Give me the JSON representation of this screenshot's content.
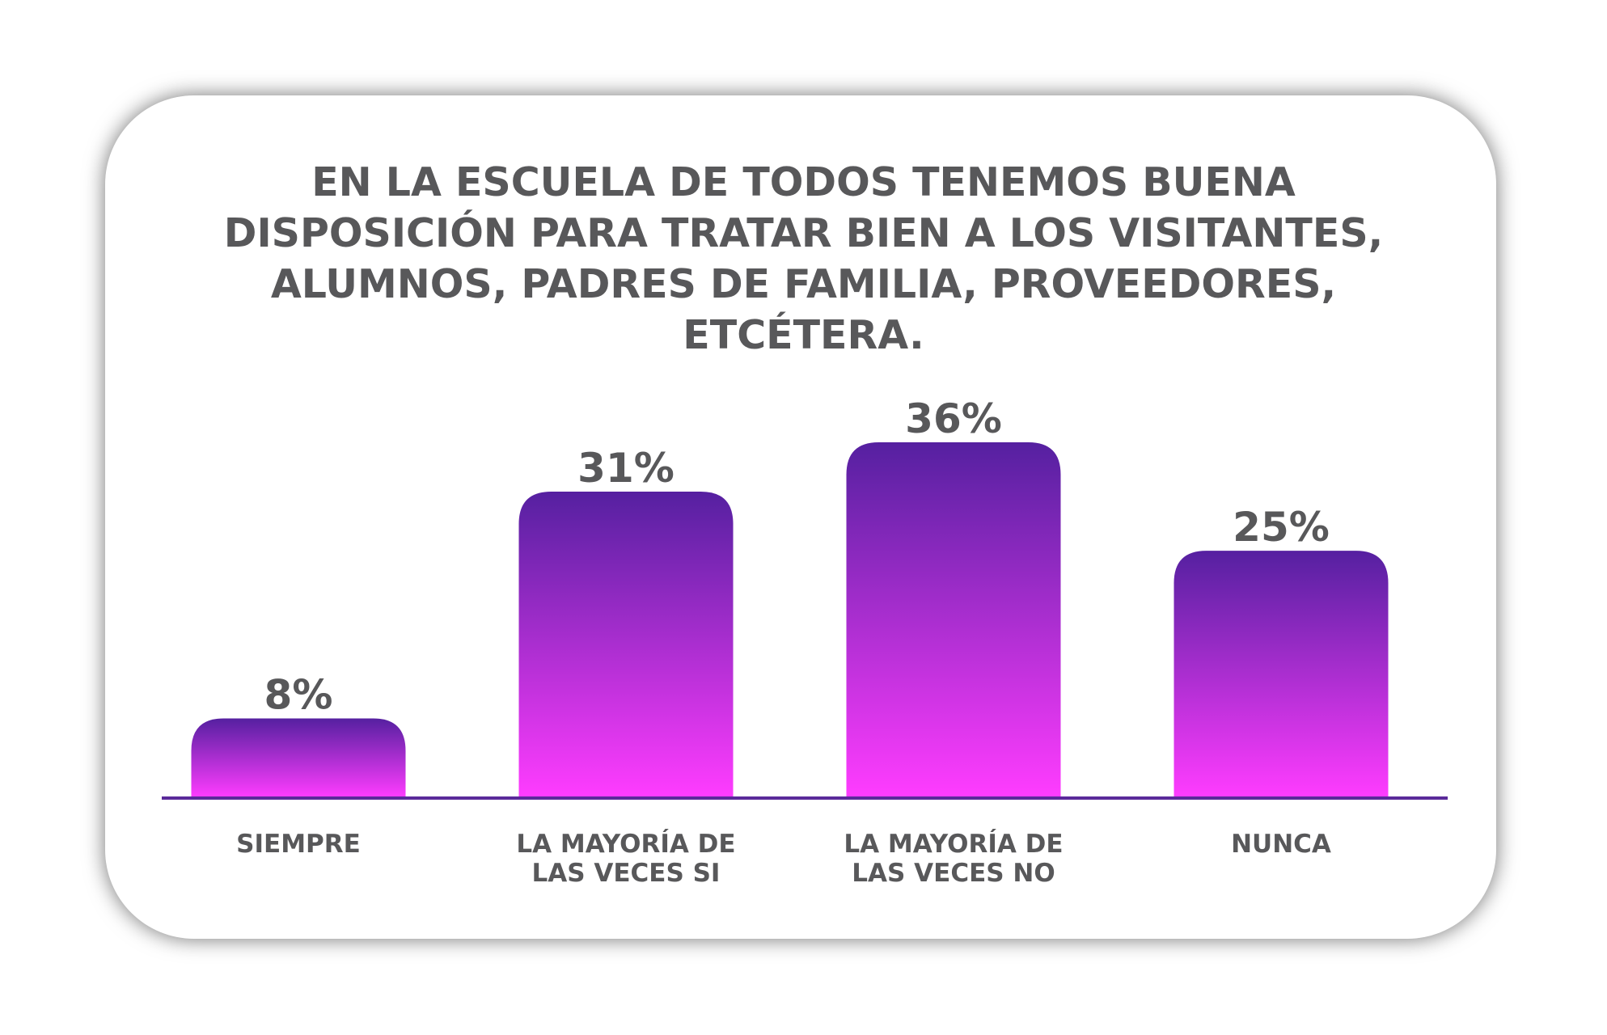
{
  "chart_data": {
    "type": "bar",
    "title_lines": [
      "EN LA ESCUELA DE TODOS TENEMOS BUENA",
      "DISPOSICIÓN PARA TRATAR BIEN A LOS VISITANTES,",
      "ALUMNOS, PADRES DE FAMILIA, PROVEEDORES,",
      "ETCÉTERA."
    ],
    "categories": [
      [
        "SIEMPRE"
      ],
      [
        "LA MAYORÍA DE",
        "LAS VECES SI"
      ],
      [
        "LA MAYORÍA DE",
        "LAS VECES NO"
      ],
      [
        "NUNCA"
      ]
    ],
    "values": [
      8,
      31,
      36,
      25
    ],
    "value_labels": [
      "8%",
      "31%",
      "36%",
      "25%"
    ],
    "ylim": [
      0,
      36
    ],
    "grid": false,
    "legend": "none",
    "colors": {
      "bar_top": "#5520a0",
      "bar_bottom": "#ff3cff",
      "axis": "#5a2a9a",
      "text": "#58585a"
    }
  }
}
